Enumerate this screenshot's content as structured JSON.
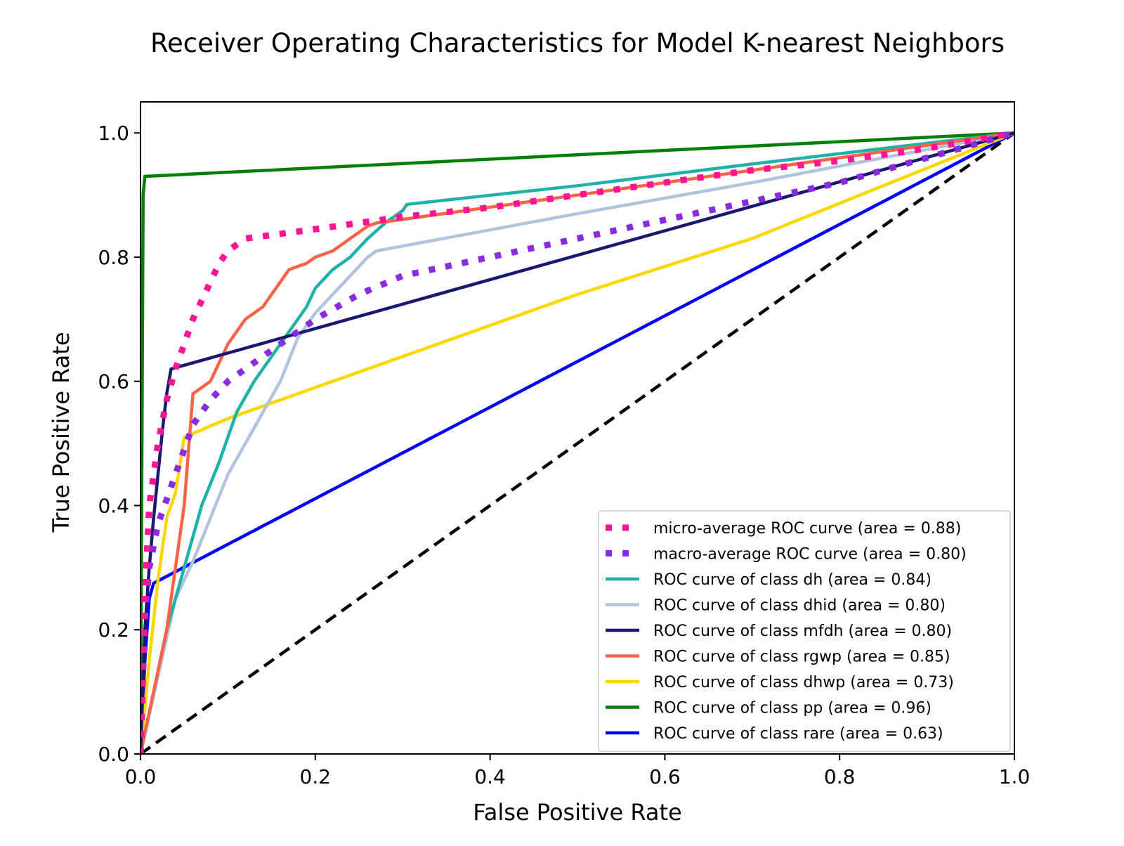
{
  "chart_data": {
    "type": "line",
    "title": "Receiver Operating Characteristics for Model K-nearest Neighbors",
    "xlabel": "False Positive Rate",
    "ylabel": "True Positive Rate",
    "xlim": [
      0.0,
      1.0
    ],
    "ylim": [
      0.0,
      1.05
    ],
    "xticks": [
      "0.0",
      "0.2",
      "0.4",
      "0.6",
      "0.8",
      "1.0"
    ],
    "yticks": [
      "0.0",
      "0.2",
      "0.4",
      "0.6",
      "0.8",
      "1.0"
    ],
    "grid": false,
    "legend_position": "lower-right",
    "series": [
      {
        "name": "micro-average ROC curve (area = 0.88)",
        "color": "#ff1493",
        "style": "dotted",
        "width": "thick",
        "x": [
          0.0,
          0.005,
          0.01,
          0.02,
          0.03,
          0.04,
          0.05,
          0.06,
          0.07,
          0.08,
          0.09,
          0.1,
          0.12,
          0.2,
          0.3,
          0.4,
          0.5,
          0.6,
          0.7,
          0.8,
          0.9,
          1.0
        ],
        "y": [
          0.0,
          0.25,
          0.4,
          0.5,
          0.57,
          0.62,
          0.66,
          0.7,
          0.73,
          0.76,
          0.79,
          0.81,
          0.83,
          0.845,
          0.865,
          0.88,
          0.9,
          0.92,
          0.94,
          0.955,
          0.975,
          1.0
        ]
      },
      {
        "name": "macro-average ROC curve (area = 0.80)",
        "color": "#8a2be2",
        "style": "dotted",
        "width": "thick",
        "x": [
          0.0,
          0.005,
          0.01,
          0.02,
          0.03,
          0.04,
          0.05,
          0.06,
          0.08,
          0.1,
          0.12,
          0.15,
          0.18,
          0.2,
          0.25,
          0.3,
          0.4,
          0.5,
          0.6,
          0.7,
          0.8,
          0.9,
          1.0
        ],
        "y": [
          0.0,
          0.22,
          0.3,
          0.37,
          0.41,
          0.45,
          0.49,
          0.53,
          0.57,
          0.6,
          0.62,
          0.65,
          0.68,
          0.7,
          0.74,
          0.77,
          0.8,
          0.83,
          0.86,
          0.89,
          0.92,
          0.96,
          1.0
        ]
      },
      {
        "name": "ROC curve of class dh (area = 0.84)",
        "color": "#20b2aa",
        "style": "solid",
        "width": "normal",
        "x": [
          0.0,
          0.03,
          0.05,
          0.07,
          0.09,
          0.11,
          0.13,
          0.15,
          0.17,
          0.19,
          0.2,
          0.22,
          0.24,
          0.26,
          0.28,
          0.3,
          0.305,
          0.5,
          0.7,
          1.0
        ],
        "y": [
          0.0,
          0.2,
          0.3,
          0.4,
          0.47,
          0.55,
          0.6,
          0.64,
          0.68,
          0.72,
          0.75,
          0.78,
          0.8,
          0.83,
          0.855,
          0.875,
          0.885,
          0.915,
          0.95,
          1.0
        ]
      },
      {
        "name": "ROC curve of class dhid (area = 0.80)",
        "color": "#b0c4de",
        "style": "solid",
        "width": "normal",
        "x": [
          0.0,
          0.04,
          0.06,
          0.08,
          0.1,
          0.12,
          0.14,
          0.16,
          0.18,
          0.2,
          0.22,
          0.24,
          0.26,
          0.27,
          0.5,
          0.7,
          1.0
        ],
        "y": [
          0.0,
          0.25,
          0.31,
          0.38,
          0.45,
          0.5,
          0.55,
          0.6,
          0.67,
          0.71,
          0.74,
          0.77,
          0.8,
          0.81,
          0.87,
          0.92,
          1.0
        ]
      },
      {
        "name": "ROC curve of class mfdh (area = 0.80)",
        "color": "#191970",
        "style": "solid",
        "width": "normal",
        "x": [
          0.0,
          0.005,
          0.01,
          0.015,
          0.02,
          0.025,
          0.03,
          0.035,
          1.0
        ],
        "y": [
          0.0,
          0.2,
          0.3,
          0.38,
          0.45,
          0.52,
          0.58,
          0.62,
          1.0
        ]
      },
      {
        "name": "ROC curve of class rgwp (area = 0.85)",
        "color": "#ff6347",
        "style": "solid",
        "width": "normal",
        "x": [
          0.0,
          0.03,
          0.05,
          0.06,
          0.08,
          0.1,
          0.12,
          0.14,
          0.15,
          0.17,
          0.19,
          0.2,
          0.22,
          0.24,
          0.26,
          0.27,
          0.5,
          0.7,
          1.0
        ],
        "y": [
          0.0,
          0.2,
          0.4,
          0.58,
          0.6,
          0.66,
          0.7,
          0.72,
          0.74,
          0.78,
          0.79,
          0.8,
          0.81,
          0.83,
          0.85,
          0.855,
          0.9,
          0.94,
          1.0
        ]
      },
      {
        "name": "ROC curve of class dhwp (area = 0.73)",
        "color": "#ffd700",
        "style": "solid",
        "width": "normal",
        "x": [
          0.0,
          0.01,
          0.02,
          0.03,
          0.04,
          0.05,
          0.1,
          0.2,
          0.3,
          0.5,
          0.7,
          1.0
        ],
        "y": [
          0.0,
          0.15,
          0.28,
          0.38,
          0.42,
          0.51,
          0.54,
          0.59,
          0.64,
          0.74,
          0.83,
          1.0
        ]
      },
      {
        "name": "ROC curve of class pp (area = 0.96)",
        "color": "#008000",
        "style": "solid",
        "width": "normal",
        "x": [
          0.0,
          0.003,
          0.005,
          1.0
        ],
        "y": [
          0.0,
          0.9,
          0.93,
          1.0
        ]
      },
      {
        "name": "ROC curve of class rare (area = 0.63)",
        "color": "#0000ff",
        "style": "solid",
        "width": "normal",
        "x": [
          0.0,
          0.005,
          0.01,
          0.015,
          1.0
        ],
        "y": [
          0.0,
          0.15,
          0.25,
          0.275,
          1.0
        ]
      }
    ],
    "reference_line": {
      "x": [
        0.0,
        1.0
      ],
      "y": [
        0.0,
        1.0
      ],
      "color": "#000000",
      "style": "dashed"
    }
  }
}
